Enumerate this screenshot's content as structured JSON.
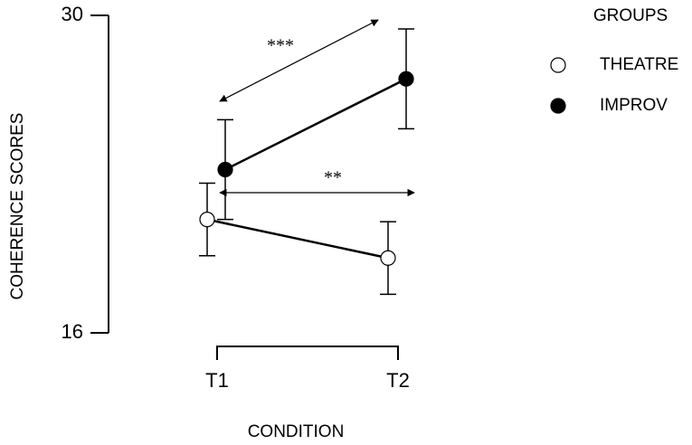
{
  "chart_data": {
    "type": "line",
    "xlabel": "CONDITION",
    "ylabel": "COHERENCE SCORES",
    "categories": [
      "T1",
      "T2"
    ],
    "series": [
      {
        "name": "THEATRE",
        "color": "#ffffff",
        "values": [
          21.0,
          19.3
        ],
        "errors": [
          1.6,
          1.6
        ]
      },
      {
        "name": "IMPROV",
        "color": "#000000",
        "values": [
          23.2,
          27.2
        ],
        "errors": [
          2.2,
          2.2
        ]
      }
    ],
    "ylim": [
      16,
      30
    ],
    "yticks": [
      16,
      30
    ],
    "legend_title": "GROUPS",
    "annotations": [
      "***",
      "**"
    ]
  }
}
